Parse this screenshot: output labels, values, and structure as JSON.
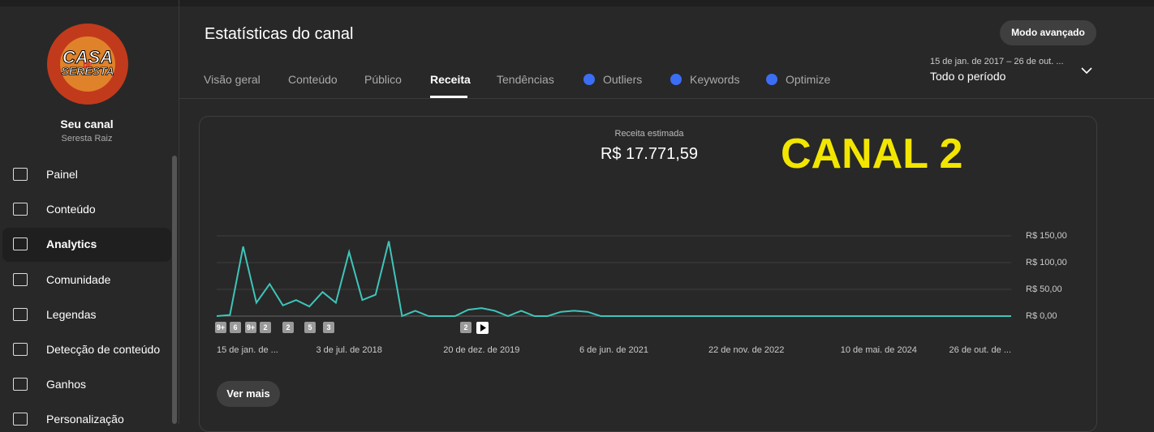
{
  "sidebar": {
    "logo_top": "CASA",
    "logo_mid": "DE",
    "logo_bottom": "SERESTA",
    "channel_name": "Seu canal",
    "channel_handle": "Seresta Raiz",
    "nav": [
      "Painel",
      "Conteúdo",
      "Analytics",
      "Comunidade",
      "Legendas",
      "Detecção de conteúdo",
      "Ganhos",
      "Personalização"
    ]
  },
  "header": {
    "title": "Estatísticas do canal",
    "mode_button": "Modo avançado",
    "tabs": [
      "Visão geral",
      "Conteúdo",
      "Público",
      "Receita",
      "Tendências",
      "Outliers",
      "Keywords",
      "Optimize"
    ],
    "date_range": "15 de jan. de 2017 – 26 de out. ...",
    "period": "Todo o período"
  },
  "card": {
    "metric_label": "Receita estimada",
    "metric_value": "R$ 17.771,59",
    "overlay": "CANAL 2",
    "more_button": "Ver mais",
    "markers": [
      "9+",
      "6",
      "9+",
      "2",
      "2",
      "5",
      "3",
      "2"
    ]
  },
  "chart_data": {
    "type": "line",
    "color": "#3ec5b9",
    "categories": [
      "15 de jan. de ...",
      null,
      null,
      null,
      null,
      null,
      null,
      null,
      null,
      null,
      "3 de jul. de 2018",
      null,
      null,
      null,
      null,
      null,
      null,
      null,
      null,
      null,
      "20 de dez. de 2019",
      null,
      null,
      null,
      null,
      null,
      null,
      null,
      null,
      null,
      "6 de jun. de 2021",
      null,
      null,
      null,
      null,
      null,
      null,
      null,
      null,
      null,
      "22 de nov. de 2022",
      null,
      null,
      null,
      null,
      null,
      null,
      null,
      null,
      null,
      "10 de mai. de 2024",
      null,
      null,
      null,
      null,
      null,
      null,
      null,
      null,
      null,
      "26 de out. de ..."
    ],
    "values": [
      0,
      2,
      130,
      25,
      60,
      20,
      30,
      18,
      45,
      25,
      120,
      30,
      40,
      140,
      0,
      10,
      0,
      0,
      0,
      12,
      15,
      10,
      0,
      10,
      0,
      0,
      8,
      10,
      8,
      0,
      0,
      0,
      0,
      0,
      0,
      0,
      0,
      0,
      0,
      0,
      0,
      0,
      0,
      0,
      0,
      0,
      0,
      0,
      0,
      0,
      0,
      0,
      0,
      0,
      0,
      0,
      0,
      0,
      0,
      0,
      0
    ],
    "ylim": [
      0,
      150
    ],
    "yticks": [
      {
        "value": 0,
        "label": "R$ 0,00"
      },
      {
        "value": 50,
        "label": "R$ 50,00"
      },
      {
        "value": 100,
        "label": "R$ 100,00"
      },
      {
        "value": 150,
        "label": "R$ 150,00"
      }
    ],
    "grid": true
  }
}
